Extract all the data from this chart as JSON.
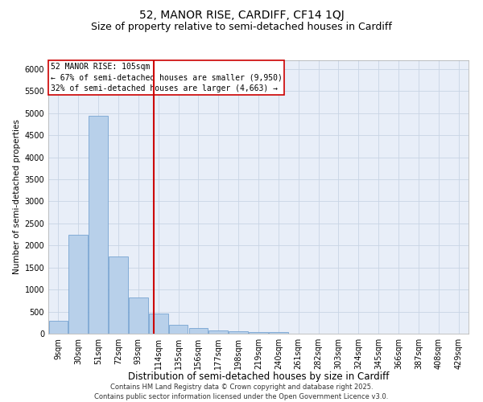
{
  "title": "52, MANOR RISE, CARDIFF, CF14 1QJ",
  "subtitle": "Size of property relative to semi-detached houses in Cardiff",
  "xlabel": "Distribution of semi-detached houses by size in Cardiff",
  "ylabel": "Number of semi-detached properties",
  "categories": [
    "9sqm",
    "30sqm",
    "51sqm",
    "72sqm",
    "93sqm",
    "114sqm",
    "135sqm",
    "156sqm",
    "177sqm",
    "198sqm",
    "219sqm",
    "240sqm",
    "261sqm",
    "282sqm",
    "303sqm",
    "324sqm",
    "345sqm",
    "366sqm",
    "387sqm",
    "408sqm",
    "429sqm"
  ],
  "bar_heights": [
    300,
    2250,
    4950,
    1750,
    820,
    460,
    200,
    130,
    75,
    60,
    45,
    30,
    0,
    0,
    0,
    0,
    0,
    0,
    0,
    0,
    0
  ],
  "bar_color": "#b8d0ea",
  "bar_edge_color": "#6699cc",
  "grid_color": "#c8d4e4",
  "background_color": "#e8eef8",
  "annotation_box_text": "52 MANOR RISE: 105sqm\n← 67% of semi-detached houses are smaller (9,950)\n32% of semi-detached houses are larger (4,663) →",
  "vline_x": 4.76,
  "vline_color": "#cc0000",
  "ylim": [
    0,
    6200
  ],
  "yticks": [
    0,
    500,
    1000,
    1500,
    2000,
    2500,
    3000,
    3500,
    4000,
    4500,
    5000,
    5500,
    6000
  ],
  "footer": "Contains HM Land Registry data © Crown copyright and database right 2025.\nContains public sector information licensed under the Open Government Licence v3.0.",
  "title_fontsize": 10,
  "subtitle_fontsize": 9,
  "xlabel_fontsize": 8.5,
  "ylabel_fontsize": 7.5,
  "tick_fontsize": 7,
  "annotation_fontsize": 7,
  "footer_fontsize": 6
}
